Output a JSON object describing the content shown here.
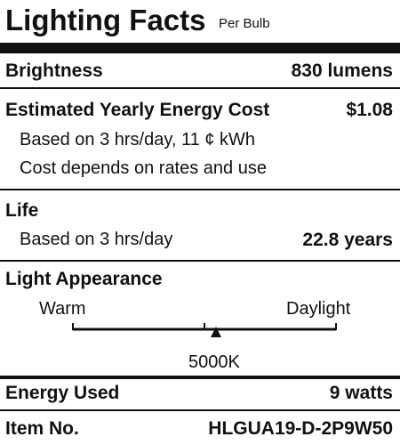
{
  "header": {
    "title": "Lighting Facts",
    "subtitle": "Per Bulb"
  },
  "brightness": {
    "label": "Brightness",
    "value": "830 lumens"
  },
  "energy_cost": {
    "label": "Estimated Yearly Energy Cost",
    "value": "$1.08",
    "notes": [
      "Based on 3 hrs/day, 11 ¢ kWh",
      "Cost depends on rates and use"
    ]
  },
  "life": {
    "label": "Life",
    "note": "Based on 3 hrs/day",
    "value": "22.8 years"
  },
  "light_appearance": {
    "label": "Light Appearance",
    "scale_left": "Warm",
    "scale_right": "Daylight",
    "value": "5000K"
  },
  "energy_used": {
    "label": "Energy Used",
    "value": "9 watts"
  },
  "item": {
    "label": "Item No.",
    "value": "HLGUA19-D-2P9W50"
  }
}
